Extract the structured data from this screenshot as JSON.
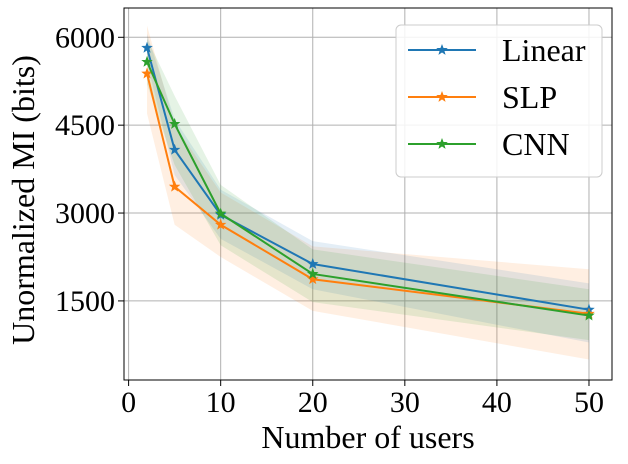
{
  "chart_data": {
    "type": "line",
    "title": "",
    "xlabel": "Number of users",
    "ylabel": "Unormalized MI (bits)",
    "xlim": [
      -0.5,
      52.5
    ],
    "ylim": [
      150,
      6500
    ],
    "xticks": [
      0,
      10,
      20,
      30,
      40,
      50
    ],
    "yticks": [
      1500,
      3000,
      4500,
      6000
    ],
    "grid": true,
    "legend_position": "top-right",
    "x": [
      2,
      5,
      10,
      20,
      50
    ],
    "series": [
      {
        "name": "Linear",
        "color": "#1f77b4",
        "marker": "star",
        "values": [
          5820,
          4080,
          2970,
          2130,
          1350
        ],
        "band_lower": [
          5570,
          3650,
          2560,
          1700,
          790
        ],
        "band_upper": [
          6060,
          4600,
          3400,
          2520,
          1800
        ]
      },
      {
        "name": "SLP",
        "color": "#ff7f0e",
        "marker": "star",
        "values": [
          5380,
          3450,
          2800,
          1870,
          1280
        ],
        "band_lower": [
          4700,
          2800,
          2250,
          1330,
          500
        ],
        "band_upper": [
          6200,
          4500,
          3350,
          2430,
          2040
        ]
      },
      {
        "name": "CNN",
        "color": "#2ca02c",
        "marker": "star",
        "values": [
          5580,
          4520,
          2990,
          1960,
          1250
        ],
        "band_lower": [
          5200,
          3820,
          2450,
          1480,
          830
        ],
        "band_upper": [
          5980,
          5000,
          3480,
          2380,
          1700
        ]
      }
    ]
  }
}
